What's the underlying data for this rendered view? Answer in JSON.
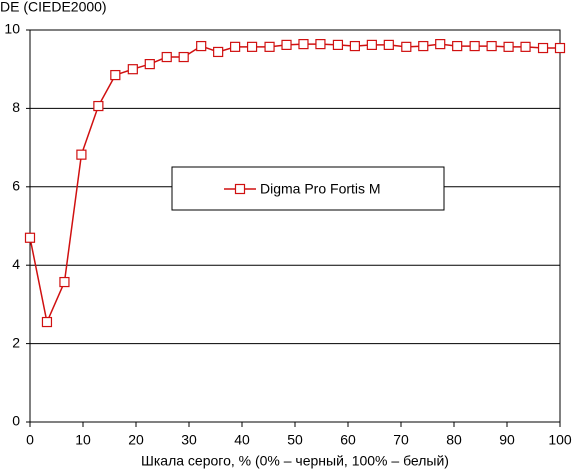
{
  "chart_data": {
    "type": "line",
    "y_label": "DE (CIEDE2000)",
    "x_label": "Шкала серого, % (0% – черный, 100% – белый)",
    "series": [
      {
        "name": "Digma Pro Fortis M",
        "color": "#d01010",
        "x": [
          0,
          3.2,
          6.5,
          9.7,
          12.9,
          16.1,
          19.4,
          22.6,
          25.8,
          29.0,
          32.3,
          35.5,
          38.7,
          41.9,
          45.2,
          48.4,
          51.6,
          54.8,
          58.1,
          61.3,
          64.5,
          67.7,
          71.0,
          74.2,
          77.4,
          80.6,
          83.9,
          87.1,
          90.3,
          93.5,
          96.8,
          100
        ],
        "values": [
          4.7,
          2.55,
          3.57,
          6.82,
          8.06,
          8.85,
          9.0,
          9.13,
          9.31,
          9.31,
          9.59,
          9.44,
          9.57,
          9.57,
          9.57,
          9.62,
          9.64,
          9.64,
          9.62,
          9.59,
          9.62,
          9.62,
          9.57,
          9.59,
          9.64,
          9.59,
          9.59,
          9.59,
          9.57,
          9.57,
          9.54,
          9.54
        ]
      }
    ],
    "xlim": [
      0,
      100
    ],
    "xticks": [
      0,
      10,
      20,
      30,
      40,
      50,
      60,
      70,
      80,
      90,
      100
    ],
    "ylim": [
      0,
      10
    ],
    "yticks": [
      0,
      2,
      4,
      6,
      8,
      10
    ],
    "grid": true
  }
}
